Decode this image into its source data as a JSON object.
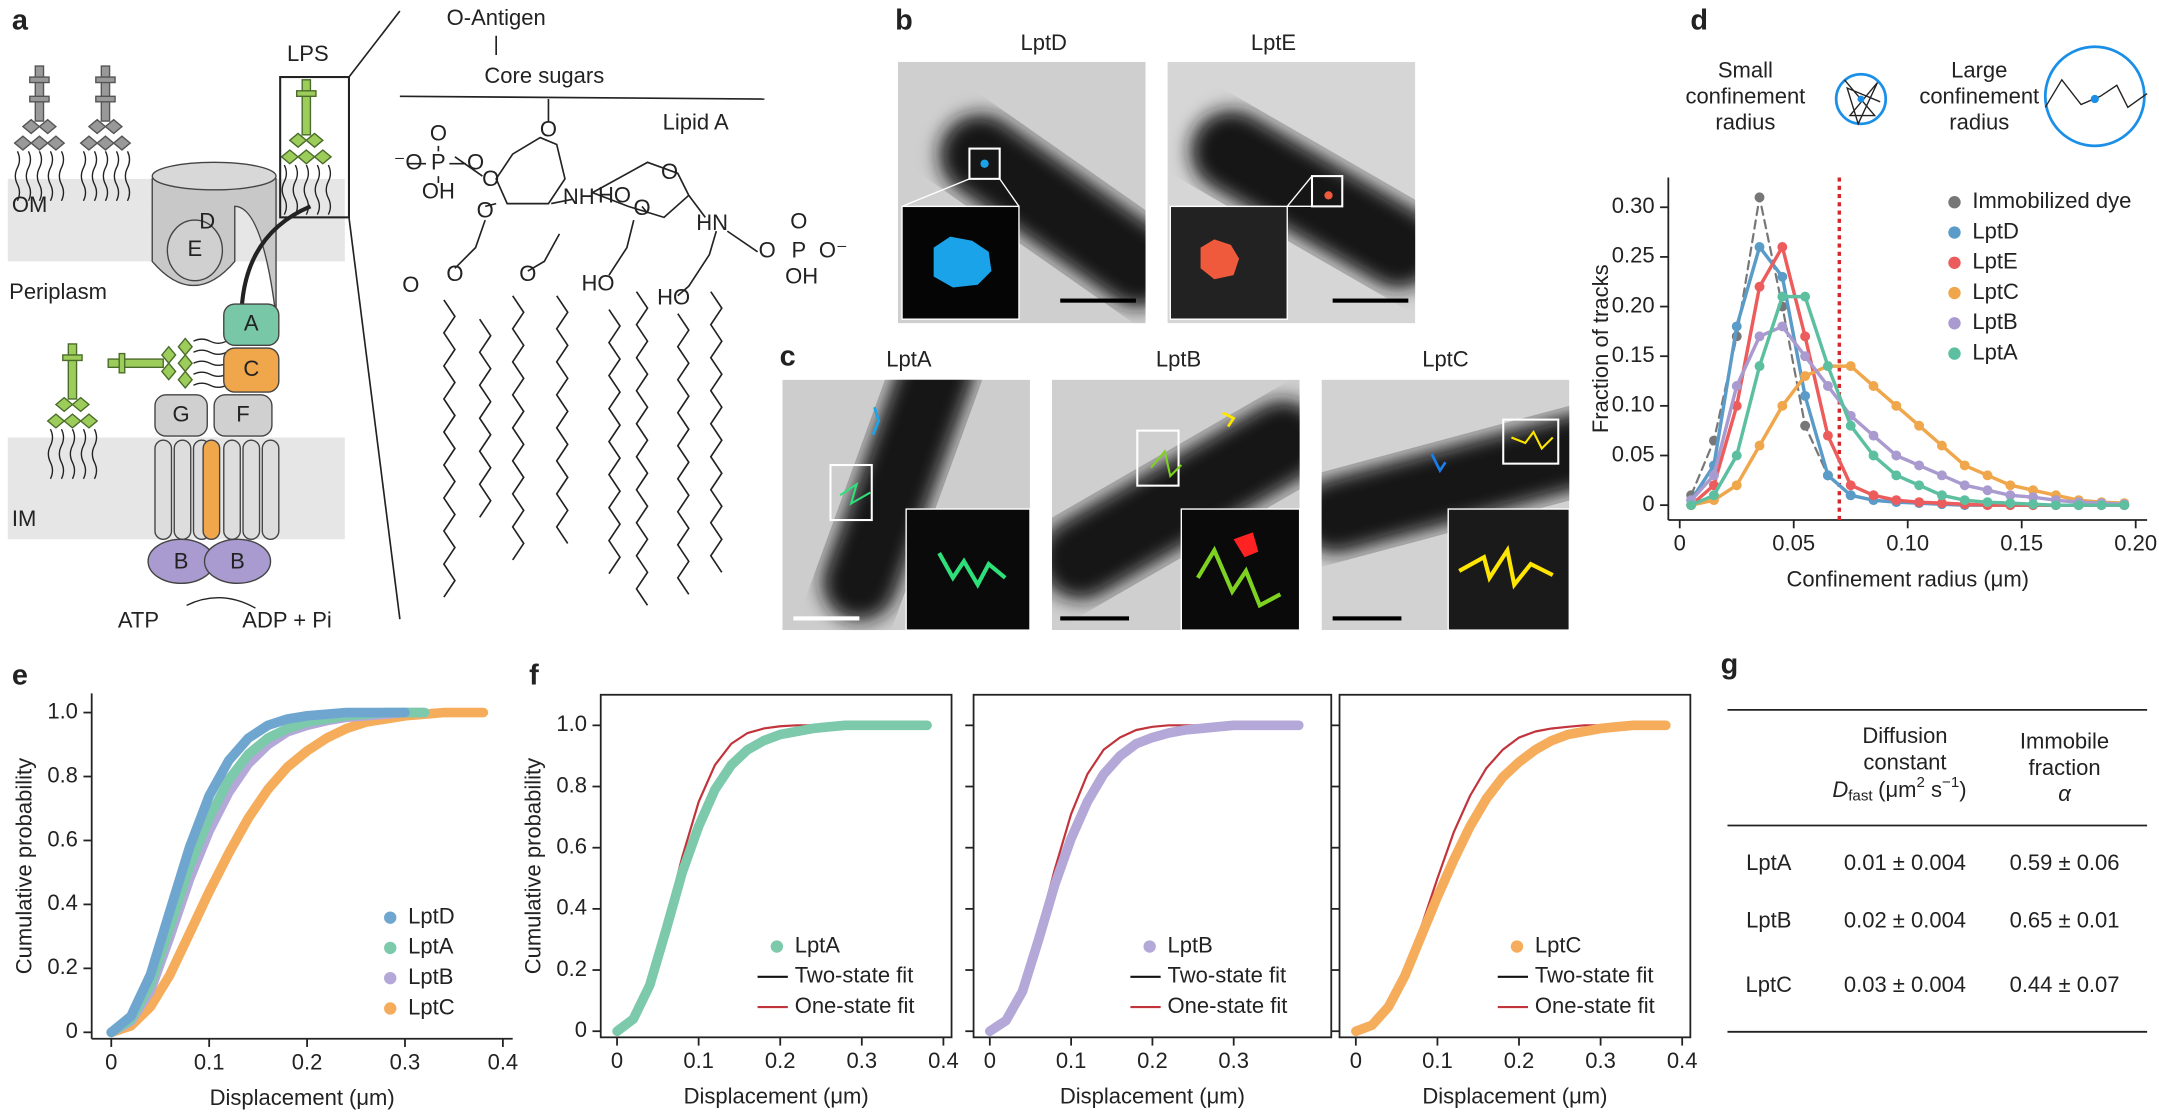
{
  "panel_labels": [
    "a",
    "b",
    "c",
    "d",
    "e",
    "f",
    "g"
  ],
  "a": {
    "membrane": [
      "OM",
      "Periplasm",
      "IM"
    ],
    "lps": "LPS",
    "proteins": [
      "D",
      "E",
      "A",
      "C",
      "G",
      "F",
      "B",
      "B"
    ],
    "atp": "ATP",
    "adp": "ADP + Pi",
    "o_antigen": "O-Antigen",
    "core": "Core sugars",
    "lipid_a": "Lipid A",
    "atoms": [
      "O",
      "P",
      "O",
      "⁻O",
      "OH",
      "O",
      "O",
      "O",
      "NH",
      "HO",
      "O",
      "O",
      "HN",
      "O",
      "P",
      "O⁻",
      "O",
      "OH",
      "O",
      "O",
      "O",
      "HO",
      "HO"
    ]
  },
  "b": {
    "titles": [
      "LptD",
      "LptE"
    ]
  },
  "c": {
    "titles": [
      "LptA",
      "LptB",
      "LptC"
    ]
  },
  "d_schematic": {
    "small": [
      "Small",
      "confinement",
      "radius"
    ],
    "large": [
      "Large",
      "confinement",
      "radius"
    ]
  },
  "chart_data": [
    {
      "type": "line",
      "xlabel": "Confinement radius (μm)",
      "ylabel": "Fraction of tracks",
      "x": [
        0.005,
        0.015,
        0.025,
        0.035,
        0.045,
        0.055,
        0.065,
        0.075,
        0.085,
        0.095,
        0.105,
        0.115,
        0.125,
        0.135,
        0.145,
        0.155,
        0.165,
        0.175,
        0.185,
        0.195
      ],
      "xlim": [
        -0.005,
        0.205
      ],
      "ylim": [
        -0.015,
        0.33
      ],
      "xticks": [
        0,
        0.05,
        {
          "value": 0.1,
          "label": "0.10"
        },
        0.15,
        {
          "value": 0.2,
          "label": "0.20"
        }
      ],
      "yticks": [
        0,
        0.05,
        {
          "value": 0.1,
          "label": "0.10"
        },
        0.15,
        {
          "value": 0.2,
          "label": "0.20"
        },
        0.25,
        {
          "value": 0.3,
          "label": "0.30"
        }
      ],
      "vline": 0.07,
      "vline_color": "#d62728",
      "legend": "upper right",
      "frame": false,
      "series": [
        {
          "name": "Immobilized dye",
          "color": "#777777",
          "style": "dashed-markers",
          "values": [
            0.01,
            0.065,
            0.17,
            0.31,
            0.2,
            0.08,
            0.03,
            0.01,
            null,
            null,
            null,
            null,
            null,
            null,
            null,
            null,
            null,
            null,
            null,
            null
          ]
        },
        {
          "name": "LptD",
          "color": "#5b9bc8",
          "style": "line-markers",
          "values": [
            0.005,
            0.04,
            0.18,
            0.26,
            0.23,
            0.11,
            0.03,
            0.01,
            0.005,
            0.003,
            0.002,
            0.001,
            0,
            0,
            0,
            0,
            0,
            0,
            0,
            0
          ]
        },
        {
          "name": "LptE",
          "color": "#ec5c5c",
          "style": "line-markers",
          "values": [
            0,
            0.02,
            0.1,
            0.22,
            0.26,
            0.17,
            0.07,
            0.02,
            0.01,
            0.005,
            0.003,
            0.002,
            0.001,
            0,
            0,
            0,
            0,
            0,
            0,
            0
          ]
        },
        {
          "name": "LptC",
          "color": "#f0a64a",
          "style": "line-markers",
          "values": [
            0,
            0.005,
            0.02,
            0.06,
            0.1,
            0.13,
            0.14,
            0.14,
            0.12,
            0.1,
            0.08,
            0.06,
            0.04,
            0.03,
            0.02,
            0.015,
            0.01,
            0.005,
            0.003,
            0.002
          ]
        },
        {
          "name": "LptB",
          "color": "#a99bd0",
          "style": "line-markers",
          "values": [
            0.005,
            0.03,
            0.12,
            0.17,
            0.18,
            0.15,
            0.12,
            0.09,
            0.07,
            0.05,
            0.04,
            0.03,
            0.02,
            0.015,
            0.01,
            0.008,
            0.005,
            0.003,
            0.002,
            0.001
          ]
        },
        {
          "name": "LptA",
          "color": "#5cbfa0",
          "style": "line-markers",
          "values": [
            0,
            0.01,
            0.05,
            0.14,
            0.21,
            0.21,
            0.14,
            0.08,
            0.05,
            0.03,
            0.02,
            0.01,
            0.005,
            0.003,
            0.002,
            0.001,
            0,
            0,
            0,
            0
          ]
        }
      ]
    },
    {
      "type": "line",
      "xlabel": "Displacement (μm)",
      "ylabel": "Cumulative probability",
      "x": [
        0,
        0.02,
        0.04,
        0.06,
        0.08,
        0.1,
        0.12,
        0.14,
        0.16,
        0.18,
        0.2,
        0.22,
        0.24,
        0.26,
        0.28,
        0.3,
        0.32,
        0.34,
        0.36,
        0.38
      ],
      "xlim": [
        -0.02,
        0.41
      ],
      "ylim": [
        -0.02,
        1.06
      ],
      "xticks": [
        0,
        0.1,
        0.2,
        0.3,
        0.4
      ],
      "yticks": [
        0,
        0.2,
        0.4,
        0.6,
        0.8,
        {
          "value": 1,
          "label": "1.0"
        }
      ],
      "legend": "lower right",
      "frame": false,
      "series": [
        {
          "name": "LptD",
          "color": "#6fa6d0",
          "style": "points",
          "values": [
            0,
            0.05,
            0.18,
            0.38,
            0.58,
            0.74,
            0.85,
            0.92,
            0.96,
            0.98,
            0.99,
            0.995,
            1,
            1,
            1,
            1,
            null,
            null,
            null,
            null
          ]
        },
        {
          "name": "LptA",
          "color": "#7cc9ac",
          "style": "points",
          "values": [
            0,
            0.04,
            0.15,
            0.33,
            0.52,
            0.67,
            0.79,
            0.87,
            0.92,
            0.95,
            0.97,
            0.98,
            0.99,
            0.995,
            1,
            1,
            1,
            null,
            null,
            null
          ]
        },
        {
          "name": "LptB",
          "color": "#b3a8d8",
          "style": "points",
          "values": [
            0,
            0.035,
            0.13,
            0.3,
            0.48,
            0.63,
            0.75,
            0.84,
            0.9,
            0.94,
            0.96,
            0.975,
            0.985,
            0.99,
            0.995,
            1,
            1,
            null,
            null,
            null
          ]
        },
        {
          "name": "LptC",
          "color": "#f5ad5c",
          "style": "points",
          "values": [
            0,
            0.02,
            0.08,
            0.18,
            0.31,
            0.44,
            0.56,
            0.67,
            0.76,
            0.83,
            0.88,
            0.92,
            0.95,
            0.97,
            0.98,
            0.99,
            0.995,
            1,
            1,
            1
          ]
        }
      ]
    },
    {
      "type": "line",
      "xlabel": "Displacement (μm)",
      "ylabel": "Cumulative probability",
      "x": [
        0,
        0.02,
        0.04,
        0.06,
        0.08,
        0.1,
        0.12,
        0.14,
        0.16,
        0.18,
        0.2,
        0.22,
        0.24,
        0.26,
        0.28,
        0.3,
        0.32,
        0.34,
        0.36,
        0.38
      ],
      "xlim": [
        -0.02,
        0.41
      ],
      "ylim": [
        -0.02,
        1.1
      ],
      "xticks": [
        0,
        0.1,
        0.2,
        0.3,
        0.4
      ],
      "yticks": [
        0,
        0.2,
        0.4,
        0.6,
        0.8,
        {
          "value": 1,
          "label": "1.0"
        }
      ],
      "legend": "lower right",
      "frame": true,
      "series": [
        {
          "name": "LptA",
          "color": "#7cc9ac",
          "style": "points",
          "values": [
            0,
            0.04,
            0.15,
            0.33,
            0.52,
            0.67,
            0.79,
            0.87,
            0.92,
            0.95,
            0.97,
            0.98,
            0.99,
            0.995,
            1,
            1,
            1,
            1,
            1,
            1
          ]
        },
        {
          "name": "Two-state fit",
          "color": "#111111",
          "style": "line",
          "values": [
            0,
            0.04,
            0.15,
            0.34,
            0.53,
            0.68,
            0.8,
            0.87,
            0.92,
            0.95,
            0.97,
            0.98,
            0.99,
            0.993,
            0.996,
            0.998,
            1,
            1,
            1,
            1
          ]
        },
        {
          "name": "One-state fit",
          "color": "#c1343b",
          "style": "line",
          "values": [
            0,
            0.04,
            0.16,
            0.36,
            0.57,
            0.75,
            0.87,
            0.94,
            0.975,
            0.99,
            0.997,
            1,
            1,
            1,
            1,
            1,
            1,
            1,
            1,
            1
          ]
        }
      ]
    },
    {
      "type": "line",
      "xlabel": "Displacement (μm)",
      "x": [
        0,
        0.02,
        0.04,
        0.06,
        0.08,
        0.1,
        0.12,
        0.14,
        0.16,
        0.18,
        0.2,
        0.22,
        0.24,
        0.26,
        0.28,
        0.3,
        0.32,
        0.34,
        0.36,
        0.38
      ],
      "xlim": [
        -0.02,
        0.42
      ],
      "ylim": [
        -0.02,
        1.1
      ],
      "xticks": [
        0,
        0.1,
        0.2,
        0.3
      ],
      "yticks": [
        0,
        0.2,
        0.4,
        0.6,
        0.8,
        1
      ],
      "ytick_labels": false,
      "legend": "lower right",
      "frame": true,
      "series": [
        {
          "name": "LptB",
          "color": "#b3a8d8",
          "style": "points",
          "values": [
            0,
            0.035,
            0.13,
            0.3,
            0.48,
            0.63,
            0.75,
            0.84,
            0.9,
            0.94,
            0.96,
            0.975,
            0.985,
            0.99,
            0.995,
            1,
            1,
            1,
            1,
            1
          ]
        },
        {
          "name": "Two-state fit",
          "color": "#111111",
          "style": "line",
          "values": [
            0,
            0.035,
            0.135,
            0.31,
            0.49,
            0.64,
            0.76,
            0.85,
            0.905,
            0.94,
            0.96,
            0.975,
            0.985,
            0.99,
            0.995,
            0.998,
            1,
            1,
            1,
            1
          ]
        },
        {
          "name": "One-state fit",
          "color": "#c1343b",
          "style": "line",
          "values": [
            0,
            0.035,
            0.14,
            0.33,
            0.53,
            0.71,
            0.84,
            0.92,
            0.96,
            0.985,
            0.995,
            1,
            1,
            1,
            1,
            1,
            1,
            1,
            1,
            1
          ]
        }
      ]
    },
    {
      "type": "line",
      "xlabel": "Displacement (μm)",
      "x": [
        0,
        0.02,
        0.04,
        0.06,
        0.08,
        0.1,
        0.12,
        0.14,
        0.16,
        0.18,
        0.2,
        0.22,
        0.24,
        0.26,
        0.28,
        0.3,
        0.32,
        0.34,
        0.36,
        0.38
      ],
      "xlim": [
        -0.02,
        0.41
      ],
      "ylim": [
        -0.02,
        1.1
      ],
      "xticks": [
        0,
        0.1,
        0.2,
        0.3,
        0.4
      ],
      "yticks": [
        0,
        0.2,
        0.4,
        0.6,
        0.8,
        1
      ],
      "ytick_labels": false,
      "legend": "lower right",
      "frame": true,
      "series": [
        {
          "name": "LptC",
          "color": "#f5ad5c",
          "style": "points",
          "values": [
            0,
            0.02,
            0.08,
            0.18,
            0.31,
            0.44,
            0.56,
            0.67,
            0.76,
            0.83,
            0.88,
            0.92,
            0.95,
            0.97,
            0.98,
            0.99,
            0.995,
            1,
            1,
            1
          ]
        },
        {
          "name": "Two-state fit",
          "color": "#111111",
          "style": "line",
          "values": [
            0,
            0.02,
            0.08,
            0.185,
            0.315,
            0.445,
            0.565,
            0.675,
            0.765,
            0.835,
            0.885,
            0.925,
            0.952,
            0.97,
            0.982,
            0.99,
            0.995,
            0.998,
            1,
            1
          ]
        },
        {
          "name": "One-state fit",
          "color": "#c1343b",
          "style": "line",
          "values": [
            0,
            0.02,
            0.08,
            0.19,
            0.34,
            0.5,
            0.65,
            0.77,
            0.86,
            0.92,
            0.96,
            0.98,
            0.99,
            0.995,
            1,
            1,
            1,
            1,
            1,
            1
          ]
        }
      ]
    }
  ],
  "g": {
    "header": {
      "col1": [
        "Diffusion",
        "constant"
      ],
      "symbol": "D",
      "sub": "fast",
      "unit": [
        "(μm",
        "2",
        " s",
        "−1",
        ")"
      ],
      "col2": [
        "Immobile",
        "fraction"
      ],
      "alpha": "α"
    },
    "rows": [
      [
        "LptA",
        "0.01 ± 0.004",
        "0.59 ± 0.06"
      ],
      [
        "LptB",
        "0.02 ± 0.004",
        "0.65 ± 0.01"
      ],
      [
        "LptC",
        "0.03 ± 0.004",
        "0.44 ± 0.07"
      ]
    ]
  }
}
